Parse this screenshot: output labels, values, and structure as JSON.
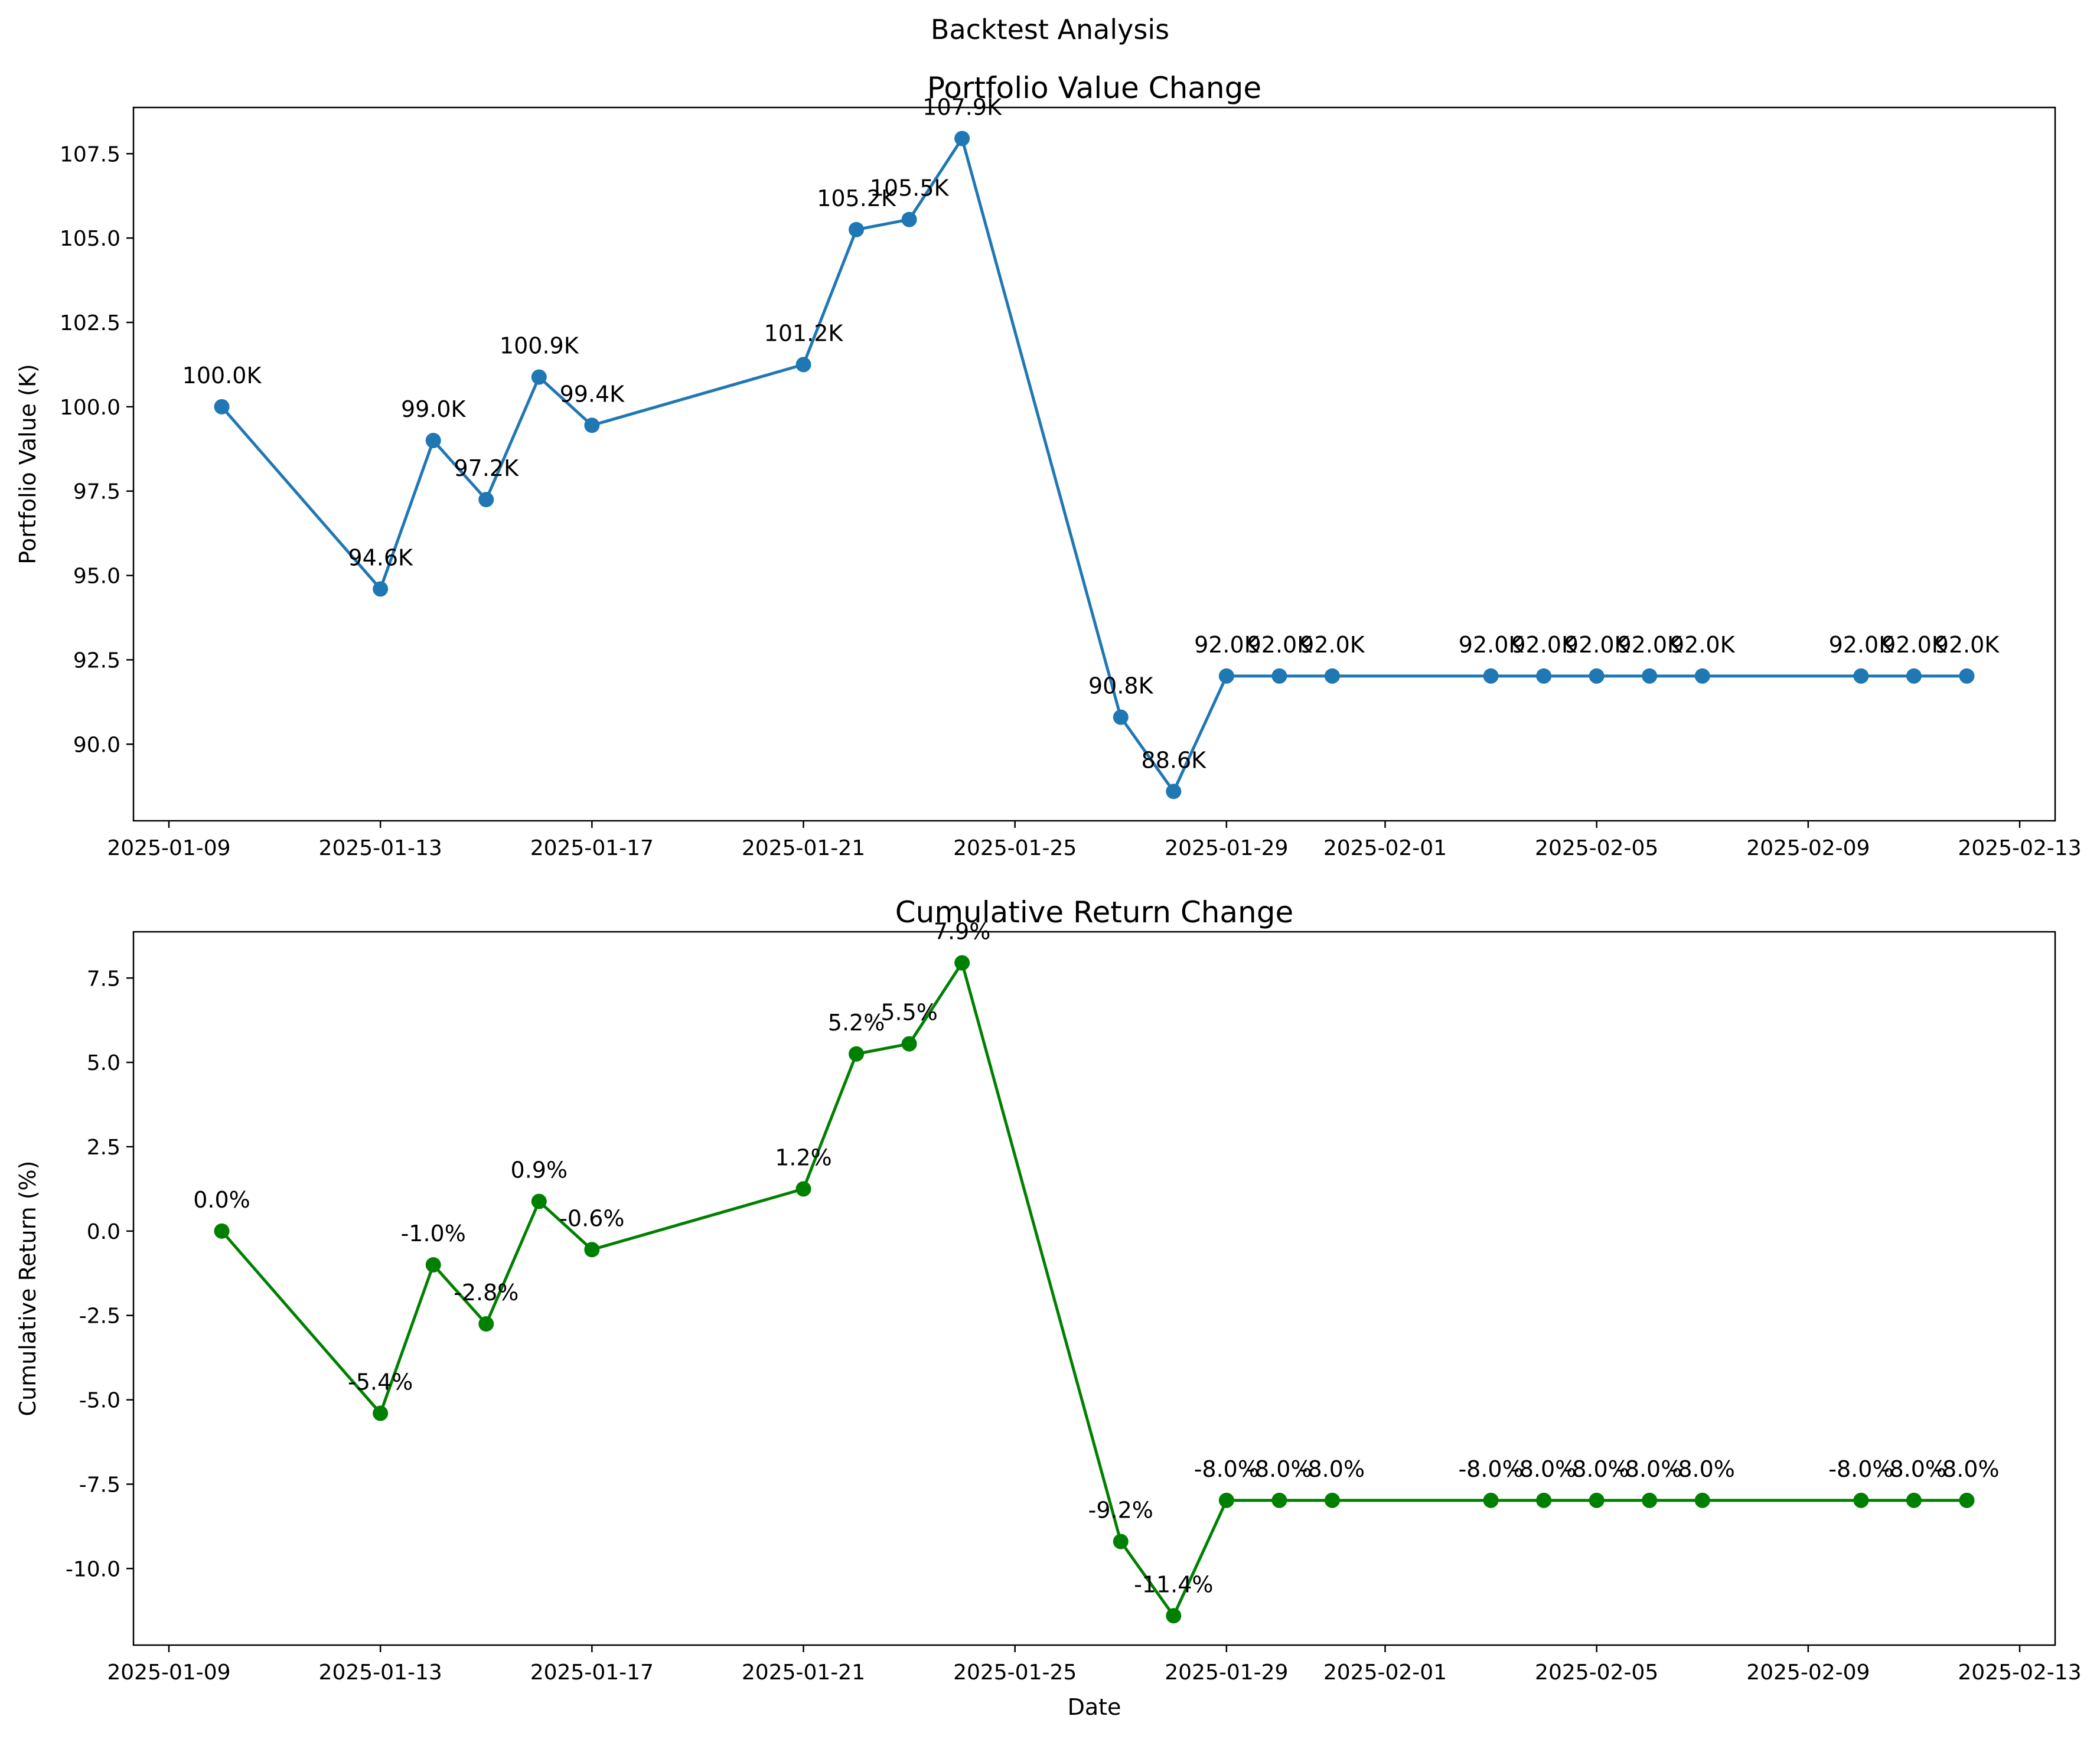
{
  "figure": {
    "suptitle": "Backtest Analysis"
  },
  "chart_data": [
    {
      "type": "line",
      "title": "Portfolio Value Change",
      "xlabel": "",
      "ylabel": "Portfolio Value (K)",
      "color": "#1f77b4",
      "xlim": [
        "2025-01-08.33",
        "2025-02-13.67"
      ],
      "ylim": [
        87.73,
        108.87
      ],
      "xticks": [
        "2025-01-09",
        "2025-01-13",
        "2025-01-17",
        "2025-01-21",
        "2025-01-25",
        "2025-01-29",
        "2025-02-01",
        "2025-02-05",
        "2025-02-09",
        "2025-02-13"
      ],
      "yticks": [
        "90.0",
        "92.5",
        "95.0",
        "97.5",
        "100.0",
        "102.5",
        "105.0",
        "107.5"
      ],
      "x": [
        "2025-01-10",
        "2025-01-13",
        "2025-01-14",
        "2025-01-15",
        "2025-01-16",
        "2025-01-17",
        "2025-01-21",
        "2025-01-22",
        "2025-01-23",
        "2025-01-24",
        "2025-01-27",
        "2025-01-28",
        "2025-01-29",
        "2025-01-30",
        "2025-01-31",
        "2025-02-03",
        "2025-02-04",
        "2025-02-05",
        "2025-02-06",
        "2025-02-07",
        "2025-02-10",
        "2025-02-11",
        "2025-02-12"
      ],
      "y": [
        100.0,
        94.6,
        99.0,
        97.25,
        100.88,
        99.45,
        101.25,
        105.25,
        105.55,
        107.95,
        90.8,
        88.6,
        92.02,
        92.02,
        92.02,
        92.02,
        92.02,
        92.02,
        92.02,
        92.02,
        92.02,
        92.02,
        92.02
      ],
      "labels": [
        "100.0K",
        "94.6K",
        "99.0K",
        "97.2K",
        "100.9K",
        "99.4K",
        "101.2K",
        "105.2K",
        "105.5K",
        "107.9K",
        "90.8K",
        "88.6K",
        "92.0K",
        "92.0K",
        "92.0K",
        "92.0K",
        "92.0K",
        "92.0K",
        "92.0K",
        "92.0K",
        "92.0K",
        "92.0K",
        "92.0K"
      ]
    },
    {
      "type": "line",
      "title": "Cumulative Return Change",
      "xlabel": "Date",
      "ylabel": "Cumulative Return (%)",
      "color": "#008000",
      "xlim": [
        "2025-01-08.33",
        "2025-02-13.67"
      ],
      "ylim": [
        -12.27,
        8.87
      ],
      "xticks": [
        "2025-01-09",
        "2025-01-13",
        "2025-01-17",
        "2025-01-21",
        "2025-01-25",
        "2025-01-29",
        "2025-02-01",
        "2025-02-05",
        "2025-02-09",
        "2025-02-13"
      ],
      "yticks": [
        "-10.0",
        "-7.5",
        "-5.0",
        "-2.5",
        "0.0",
        "2.5",
        "5.0",
        "7.5"
      ],
      "x": [
        "2025-01-10",
        "2025-01-13",
        "2025-01-14",
        "2025-01-15",
        "2025-01-16",
        "2025-01-17",
        "2025-01-21",
        "2025-01-22",
        "2025-01-23",
        "2025-01-24",
        "2025-01-27",
        "2025-01-28",
        "2025-01-29",
        "2025-01-30",
        "2025-01-31",
        "2025-02-03",
        "2025-02-04",
        "2025-02-05",
        "2025-02-06",
        "2025-02-07",
        "2025-02-10",
        "2025-02-11",
        "2025-02-12"
      ],
      "y": [
        0.0,
        -5.4,
        -1.0,
        -2.75,
        0.88,
        -0.55,
        1.25,
        5.25,
        5.55,
        7.95,
        -9.2,
        -11.4,
        -7.98,
        -7.98,
        -7.98,
        -7.98,
        -7.98,
        -7.98,
        -7.98,
        -7.98,
        -7.98,
        -7.98,
        -7.98
      ],
      "labels": [
        "0.0%",
        "-5.4%",
        "-1.0%",
        "-2.8%",
        "0.9%",
        "-0.6%",
        "1.2%",
        "5.2%",
        "5.5%",
        "7.9%",
        "-9.2%",
        "-11.4%",
        "-8.0%",
        "-8.0%",
        "-8.0%",
        "-8.0%",
        "-8.0%",
        "-8.0%",
        "-8.0%",
        "-8.0%",
        "-8.0%",
        "-8.0%",
        "-8.0%"
      ]
    }
  ]
}
